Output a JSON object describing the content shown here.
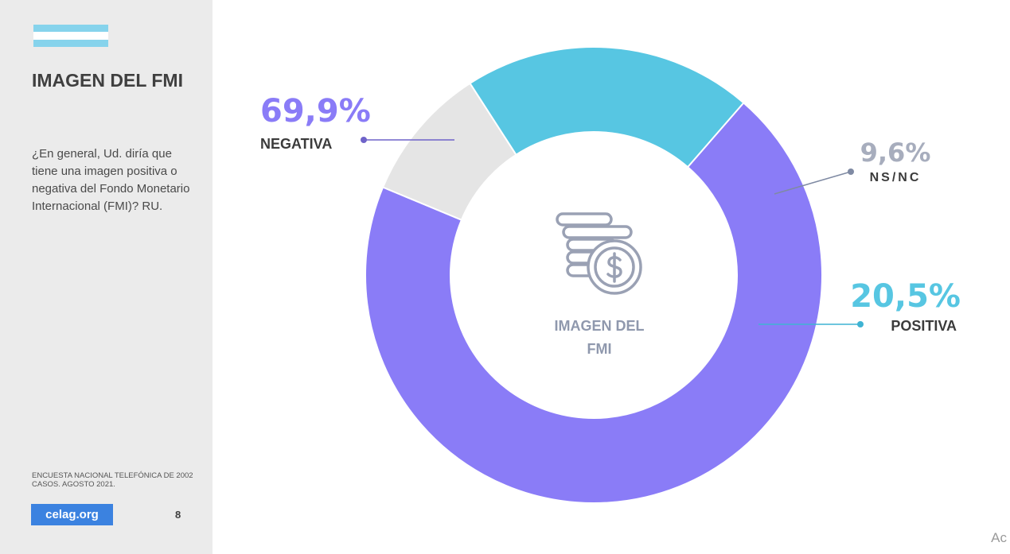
{
  "sidebar": {
    "title": "IMAGEN DEL FMI",
    "question": "¿En general, Ud. diría que tiene una imagen positiva o negativa del Fondo Monetario Internacional (FMI)? RU.",
    "source": "ENCUESTA NACIONAL TELEFÓNICA DE 2002 CASOS. AGOSTO 2021.",
    "logo_text": "celag.org",
    "page_number": "8",
    "flag_colors": [
      "#86d3ec",
      "#ffffff",
      "#86d3ec"
    ]
  },
  "corner_text": "Ac",
  "icon": "money-coins-icon",
  "chart_data": {
    "type": "pie",
    "donut": true,
    "center_label": [
      "IMAGEN DEL",
      "FMI"
    ],
    "slices": [
      {
        "label": "NEGATIVA",
        "value": 69.9,
        "value_label": "69,9%",
        "color": "#8a7cf7"
      },
      {
        "label": "NS/NC",
        "value": 9.6,
        "value_label": "9,6%",
        "color": "#e5e5e5"
      },
      {
        "label": "POSITIVA",
        "value": 20.5,
        "value_label": "20,5%",
        "color": "#57c6e2"
      }
    ]
  }
}
